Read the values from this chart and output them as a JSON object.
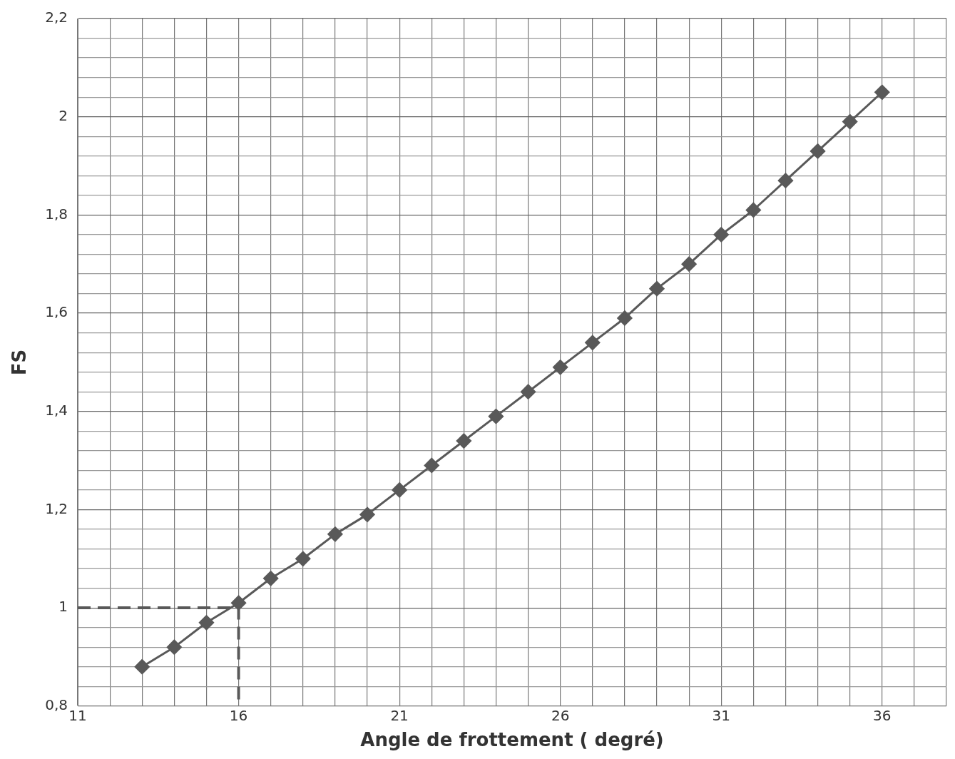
{
  "chart_data": {
    "type": "line",
    "xlabel": "Angle de frottement ( degré)",
    "ylabel": "FS",
    "xlim": [
      11,
      38
    ],
    "ylim": [
      0.8,
      2.2
    ],
    "xticks": [
      11,
      {
        "value": 12,
        "label": null
      },
      {
        "value": 13,
        "label": null
      },
      {
        "value": 14,
        "label": null
      },
      {
        "value": 15,
        "label": null
      },
      16,
      {
        "value": 17,
        "label": null
      },
      {
        "value": 18,
        "label": null
      },
      {
        "value": 19,
        "label": null
      },
      {
        "value": 20,
        "label": null
      },
      21,
      {
        "value": 22,
        "label": null
      },
      {
        "value": 23,
        "label": null
      },
      {
        "value": 24,
        "label": null
      },
      {
        "value": 25,
        "label": null
      },
      26,
      {
        "value": 27,
        "label": null
      },
      {
        "value": 28,
        "label": null
      },
      {
        "value": 29,
        "label": null
      },
      {
        "value": 30,
        "label": null
      },
      31,
      {
        "value": 32,
        "label": null
      },
      {
        "value": 33,
        "label": null
      },
      {
        "value": 34,
        "label": null
      },
      {
        "value": 35,
        "label": null
      },
      36,
      {
        "value": 37,
        "label": null
      },
      {
        "value": 38,
        "label": null
      }
    ],
    "yticks": [
      {
        "value": 0.8,
        "label": "0,8"
      },
      {
        "value": 0.84,
        "label": null
      },
      {
        "value": 0.88,
        "label": null
      },
      {
        "value": 0.92,
        "label": null
      },
      {
        "value": 0.96,
        "label": null
      },
      1,
      {
        "value": 1.04,
        "label": null
      },
      {
        "value": 1.08,
        "label": null
      },
      {
        "value": 1.12,
        "label": null
      },
      {
        "value": 1.16,
        "label": null
      },
      {
        "value": 1.2,
        "label": "1,2"
      },
      {
        "value": 1.24,
        "label": null
      },
      {
        "value": 1.28,
        "label": null
      },
      {
        "value": 1.32,
        "label": null
      },
      {
        "value": 1.36,
        "label": null
      },
      {
        "value": 1.4,
        "label": "1,4"
      },
      {
        "value": 1.44,
        "label": null
      },
      {
        "value": 1.48,
        "label": null
      },
      {
        "value": 1.52,
        "label": null
      },
      {
        "value": 1.56,
        "label": null
      },
      {
        "value": 1.6,
        "label": "1,6"
      },
      {
        "value": 1.64,
        "label": null
      },
      {
        "value": 1.68,
        "label": null
      },
      {
        "value": 1.72,
        "label": null
      },
      {
        "value": 1.76,
        "label": null
      },
      {
        "value": 1.8,
        "label": "1,8"
      },
      {
        "value": 1.84,
        "label": null
      },
      {
        "value": 1.88,
        "label": null
      },
      {
        "value": 1.92,
        "label": null
      },
      {
        "value": 1.96,
        "label": null
      },
      2,
      {
        "value": 2.04,
        "label": null
      },
      {
        "value": 2.08,
        "label": null
      },
      {
        "value": 2.12,
        "label": null
      },
      {
        "value": 2.16,
        "label": null
      },
      {
        "value": 2.2,
        "label": "2,2"
      }
    ],
    "grid": true,
    "legend": false,
    "series": [
      {
        "color": "#595959",
        "marker": "diamond",
        "line_style": "solid",
        "x": [
          13,
          14,
          15,
          16,
          17,
          18,
          19,
          20,
          21,
          22,
          23,
          24,
          25,
          26,
          27,
          28,
          29,
          30,
          31,
          32,
          33,
          34,
          35,
          36
        ],
        "values": [
          0.88,
          0.92,
          0.97,
          1.01,
          1.06,
          1.1,
          1.15,
          1.19,
          1.24,
          1.29,
          1.34,
          1.39,
          1.44,
          1.49,
          1.54,
          1.59,
          1.65,
          1.7,
          1.76,
          1.81,
          1.87,
          1.93,
          1.99,
          2.05
        ]
      },
      {
        "color": "#595959",
        "marker": "none",
        "line_style": "dashed",
        "x": [
          11,
          16,
          16
        ],
        "values": [
          1,
          1,
          0.8
        ]
      }
    ]
  }
}
